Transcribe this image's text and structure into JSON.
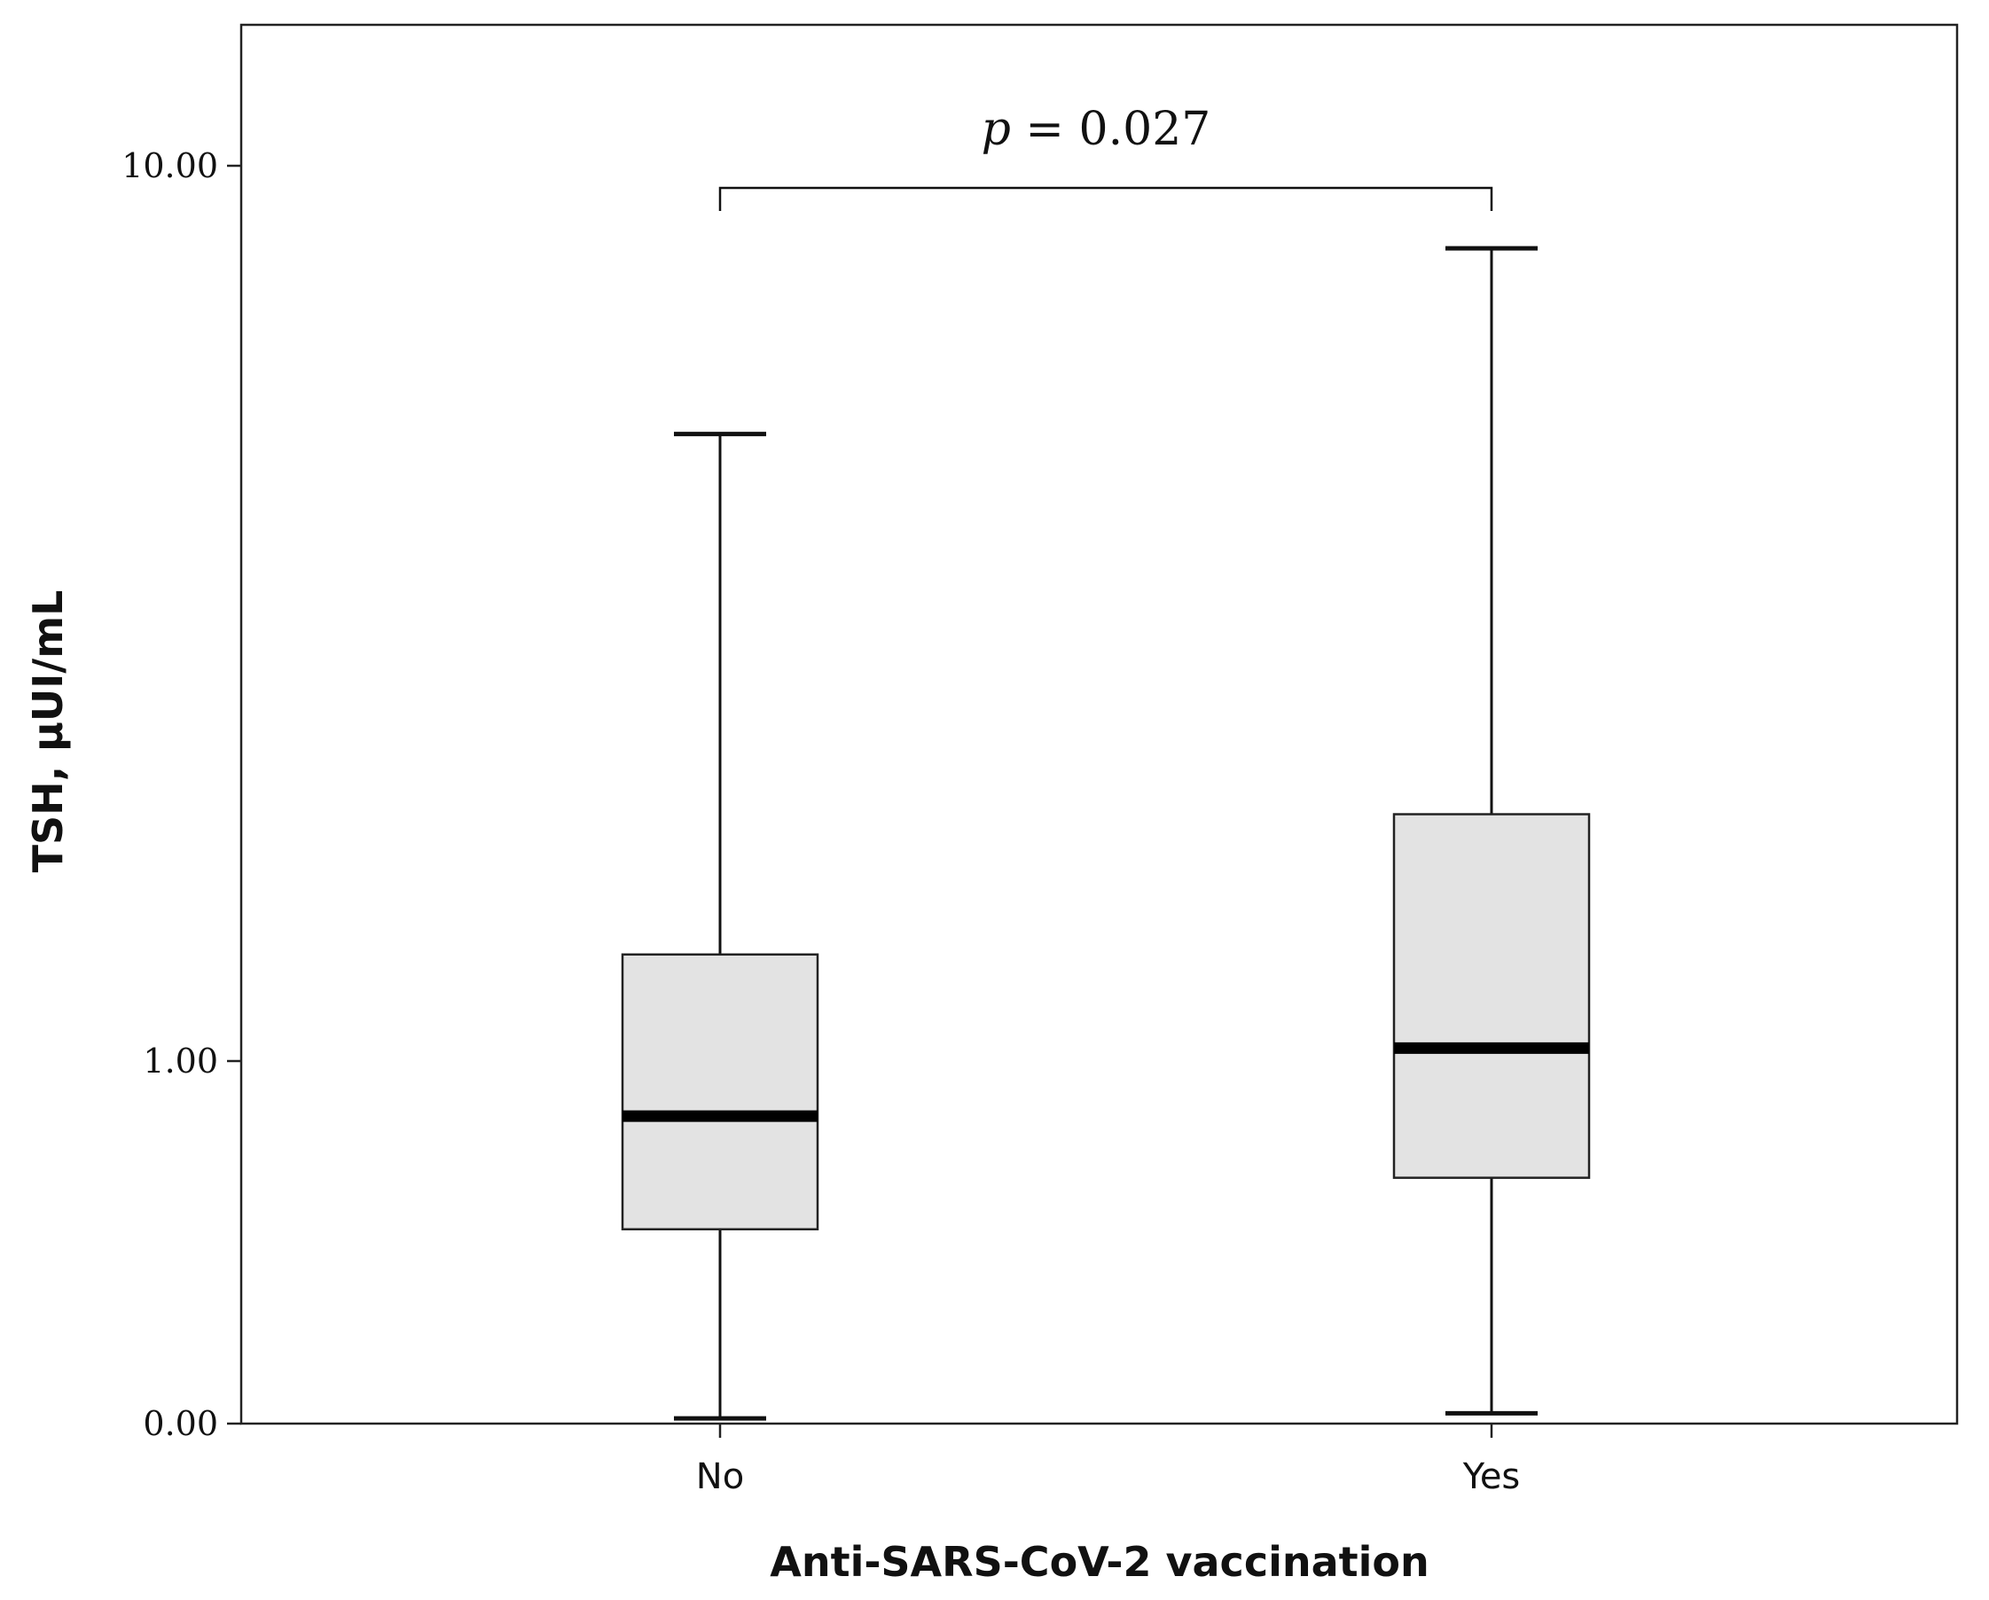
{
  "chart_data": {
    "type": "box",
    "xlabel": "Anti-SARS-CoV-2 vaccination",
    "ylabel": "TSH, µUI/mL",
    "yscale": "log1p",
    "ylim": [
      0,
      14
    ],
    "yticks": [
      {
        "value": 0,
        "label": "0.00"
      },
      {
        "value": 1,
        "label": "1.00"
      },
      {
        "value": 10,
        "label": "10.00"
      }
    ],
    "categories": [
      "No",
      "Yes"
    ],
    "boxes": [
      {
        "category": "No",
        "min": 0.01,
        "q1": 0.45,
        "median": 0.8,
        "q3": 1.45,
        "max": 5.6
      },
      {
        "category": "Yes",
        "min": 0.02,
        "q1": 0.6,
        "median": 1.05,
        "q3": 2.2,
        "max": 8.4
      }
    ],
    "box_fill": "#e3e3e3",
    "annotation": {
      "p_symbol": "p",
      "p_rest": " = 0.027",
      "between": [
        "No",
        "Yes"
      ]
    },
    "grid": false,
    "legend": "none"
  }
}
